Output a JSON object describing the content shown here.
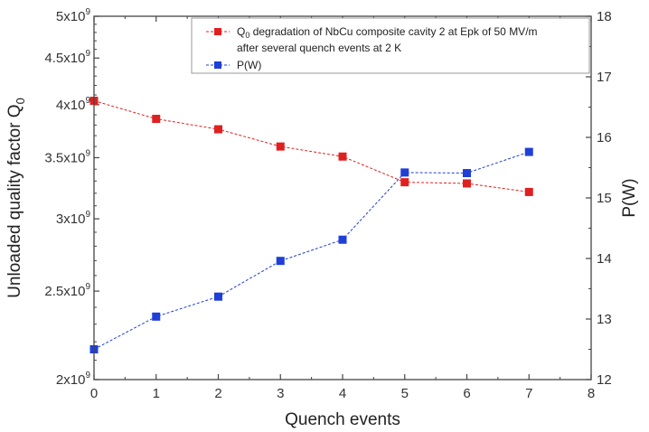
{
  "chart_data": {
    "type": "line",
    "x": [
      0,
      1,
      2,
      3,
      4,
      5,
      6,
      7
    ],
    "xlabel": "Quench events",
    "xlim": [
      0,
      8
    ],
    "xticks": [
      "0",
      "1",
      "2",
      "3",
      "4",
      "5",
      "6",
      "7",
      "8"
    ],
    "ylabel_left_text": "Unloaded quality factor Q",
    "ylabel_left_sub": "0",
    "ylim_left": [
      2000000000,
      5000000000
    ],
    "ylabel_right": "P(W)",
    "ylim_right": [
      12,
      18
    ],
    "yticks_right": [
      "12",
      "13",
      "14",
      "15",
      "16",
      "17",
      "18"
    ],
    "left_tick_values": [
      2000000000,
      2500000000,
      3000000000,
      3500000000,
      4000000000,
      4500000000,
      5000000000
    ],
    "left_ticks": [
      {
        "mant": "2x10",
        "exp": "9"
      },
      {
        "mant": "2.5x10",
        "exp": "9"
      },
      {
        "mant": "3x10",
        "exp": "9"
      },
      {
        "mant": "3.5x10",
        "exp": "9"
      },
      {
        "mant": "4x10",
        "exp": "9"
      },
      {
        "mant": "4.5x10",
        "exp": "9"
      },
      {
        "mant": "5x10",
        "exp": "9"
      }
    ],
    "series": [
      {
        "name": "Q0 degradation of NbCu composite cavity 2 at Epk of 50 MV/m after several quench events at 2 K",
        "axis": "left",
        "color": "#e02020",
        "marker": "square",
        "line": "dashed",
        "values": [
          4040000000,
          3860000000,
          3760000000,
          3600000000,
          3510000000,
          3290000000,
          3280000000,
          3210000000
        ]
      },
      {
        "name": "P(W)",
        "axis": "right",
        "color": "#1f3fd8",
        "marker": "square",
        "line": "dashed",
        "values": [
          12.5,
          13.04,
          13.37,
          13.96,
          14.31,
          15.42,
          15.41,
          15.76
        ]
      }
    ],
    "legend": {
      "placement": "top-right",
      "q_prefix": "Q",
      "q_sub": "0",
      "q_line1_rest": " degradation  of NbCu composite cavity 2 at Epk of 50 MV/m",
      "q_line2": "after several quench events at 2 K",
      "p_label": "P(W)"
    },
    "grid": false
  }
}
